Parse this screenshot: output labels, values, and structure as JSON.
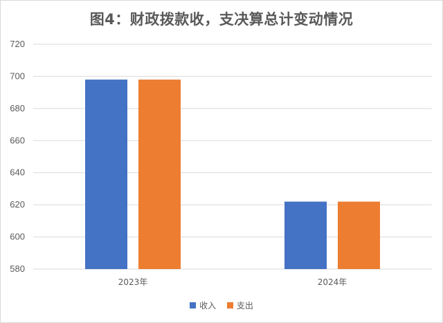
{
  "chart_data": {
    "type": "bar",
    "title": "图4：财政拨款收，支决算总计变动情况",
    "categories": [
      "2023年",
      "2024年"
    ],
    "series": [
      {
        "name": "收入",
        "color": "#4472c4",
        "values": [
          698,
          622
        ]
      },
      {
        "name": "支出",
        "color": "#ed7d31",
        "values": [
          698,
          622
        ]
      }
    ],
    "ylim": [
      580,
      720
    ],
    "yticks": [
      "580",
      "600",
      "620",
      "640",
      "660",
      "680",
      "700",
      "720"
    ],
    "grid": true,
    "legend_position": "bottom"
  }
}
